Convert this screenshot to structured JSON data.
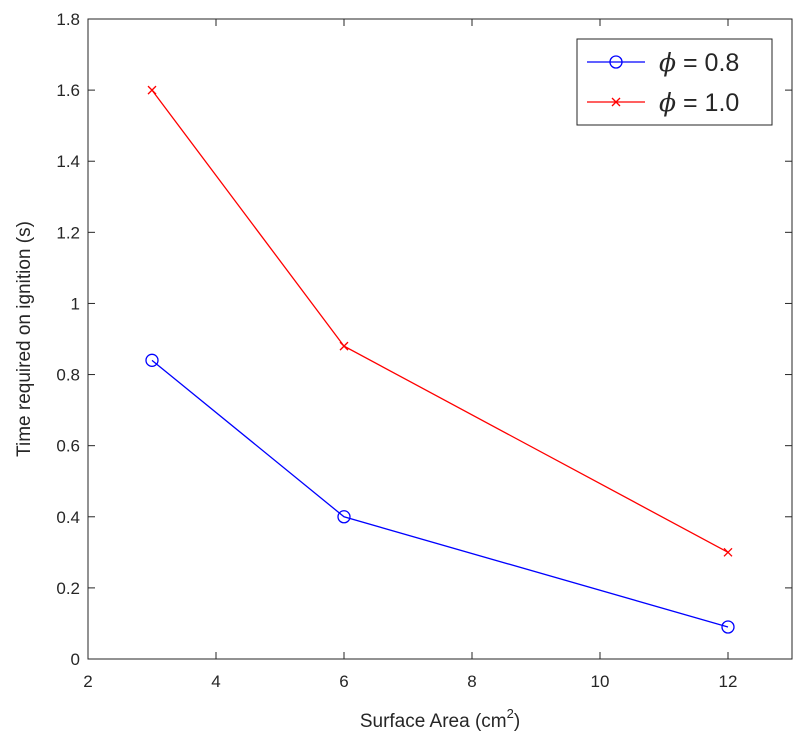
{
  "chart_data": {
    "type": "line",
    "title": "",
    "xlabel": "Surface Area (cm",
    "xlabel_sup": "2",
    "xlabel_close": ")",
    "ylabel": "Time required on ignition (s)",
    "xlim": [
      2,
      13
    ],
    "ylim": [
      0,
      1.8
    ],
    "xticks": [
      2,
      4,
      6,
      8,
      10,
      12
    ],
    "xtick_labels": [
      "2",
      "4",
      "6",
      "8",
      "10",
      "12"
    ],
    "yticks": [
      0,
      0.2,
      0.4,
      0.6,
      0.8,
      1.0,
      1.2,
      1.4,
      1.6,
      1.8
    ],
    "ytick_labels": [
      "0",
      "0.2",
      "0.4",
      "0.6",
      "0.8",
      "1",
      "1.2",
      "1.4",
      "1.6",
      "1.8"
    ],
    "x": [
      3,
      6,
      12
    ],
    "grid": false,
    "legend_position": "top-right",
    "series": [
      {
        "name": "ϕ = 0.8",
        "symbol": "ϕ",
        "rest": " = 0.8",
        "marker": "circle",
        "color": "#0000ff",
        "values": [
          0.84,
          0.4,
          0.09
        ]
      },
      {
        "name": "ϕ = 1.0",
        "symbol": "ϕ",
        "rest": " = 1.0",
        "marker": "x",
        "color": "#ff0000",
        "values": [
          1.6,
          0.88,
          0.3
        ]
      }
    ]
  }
}
